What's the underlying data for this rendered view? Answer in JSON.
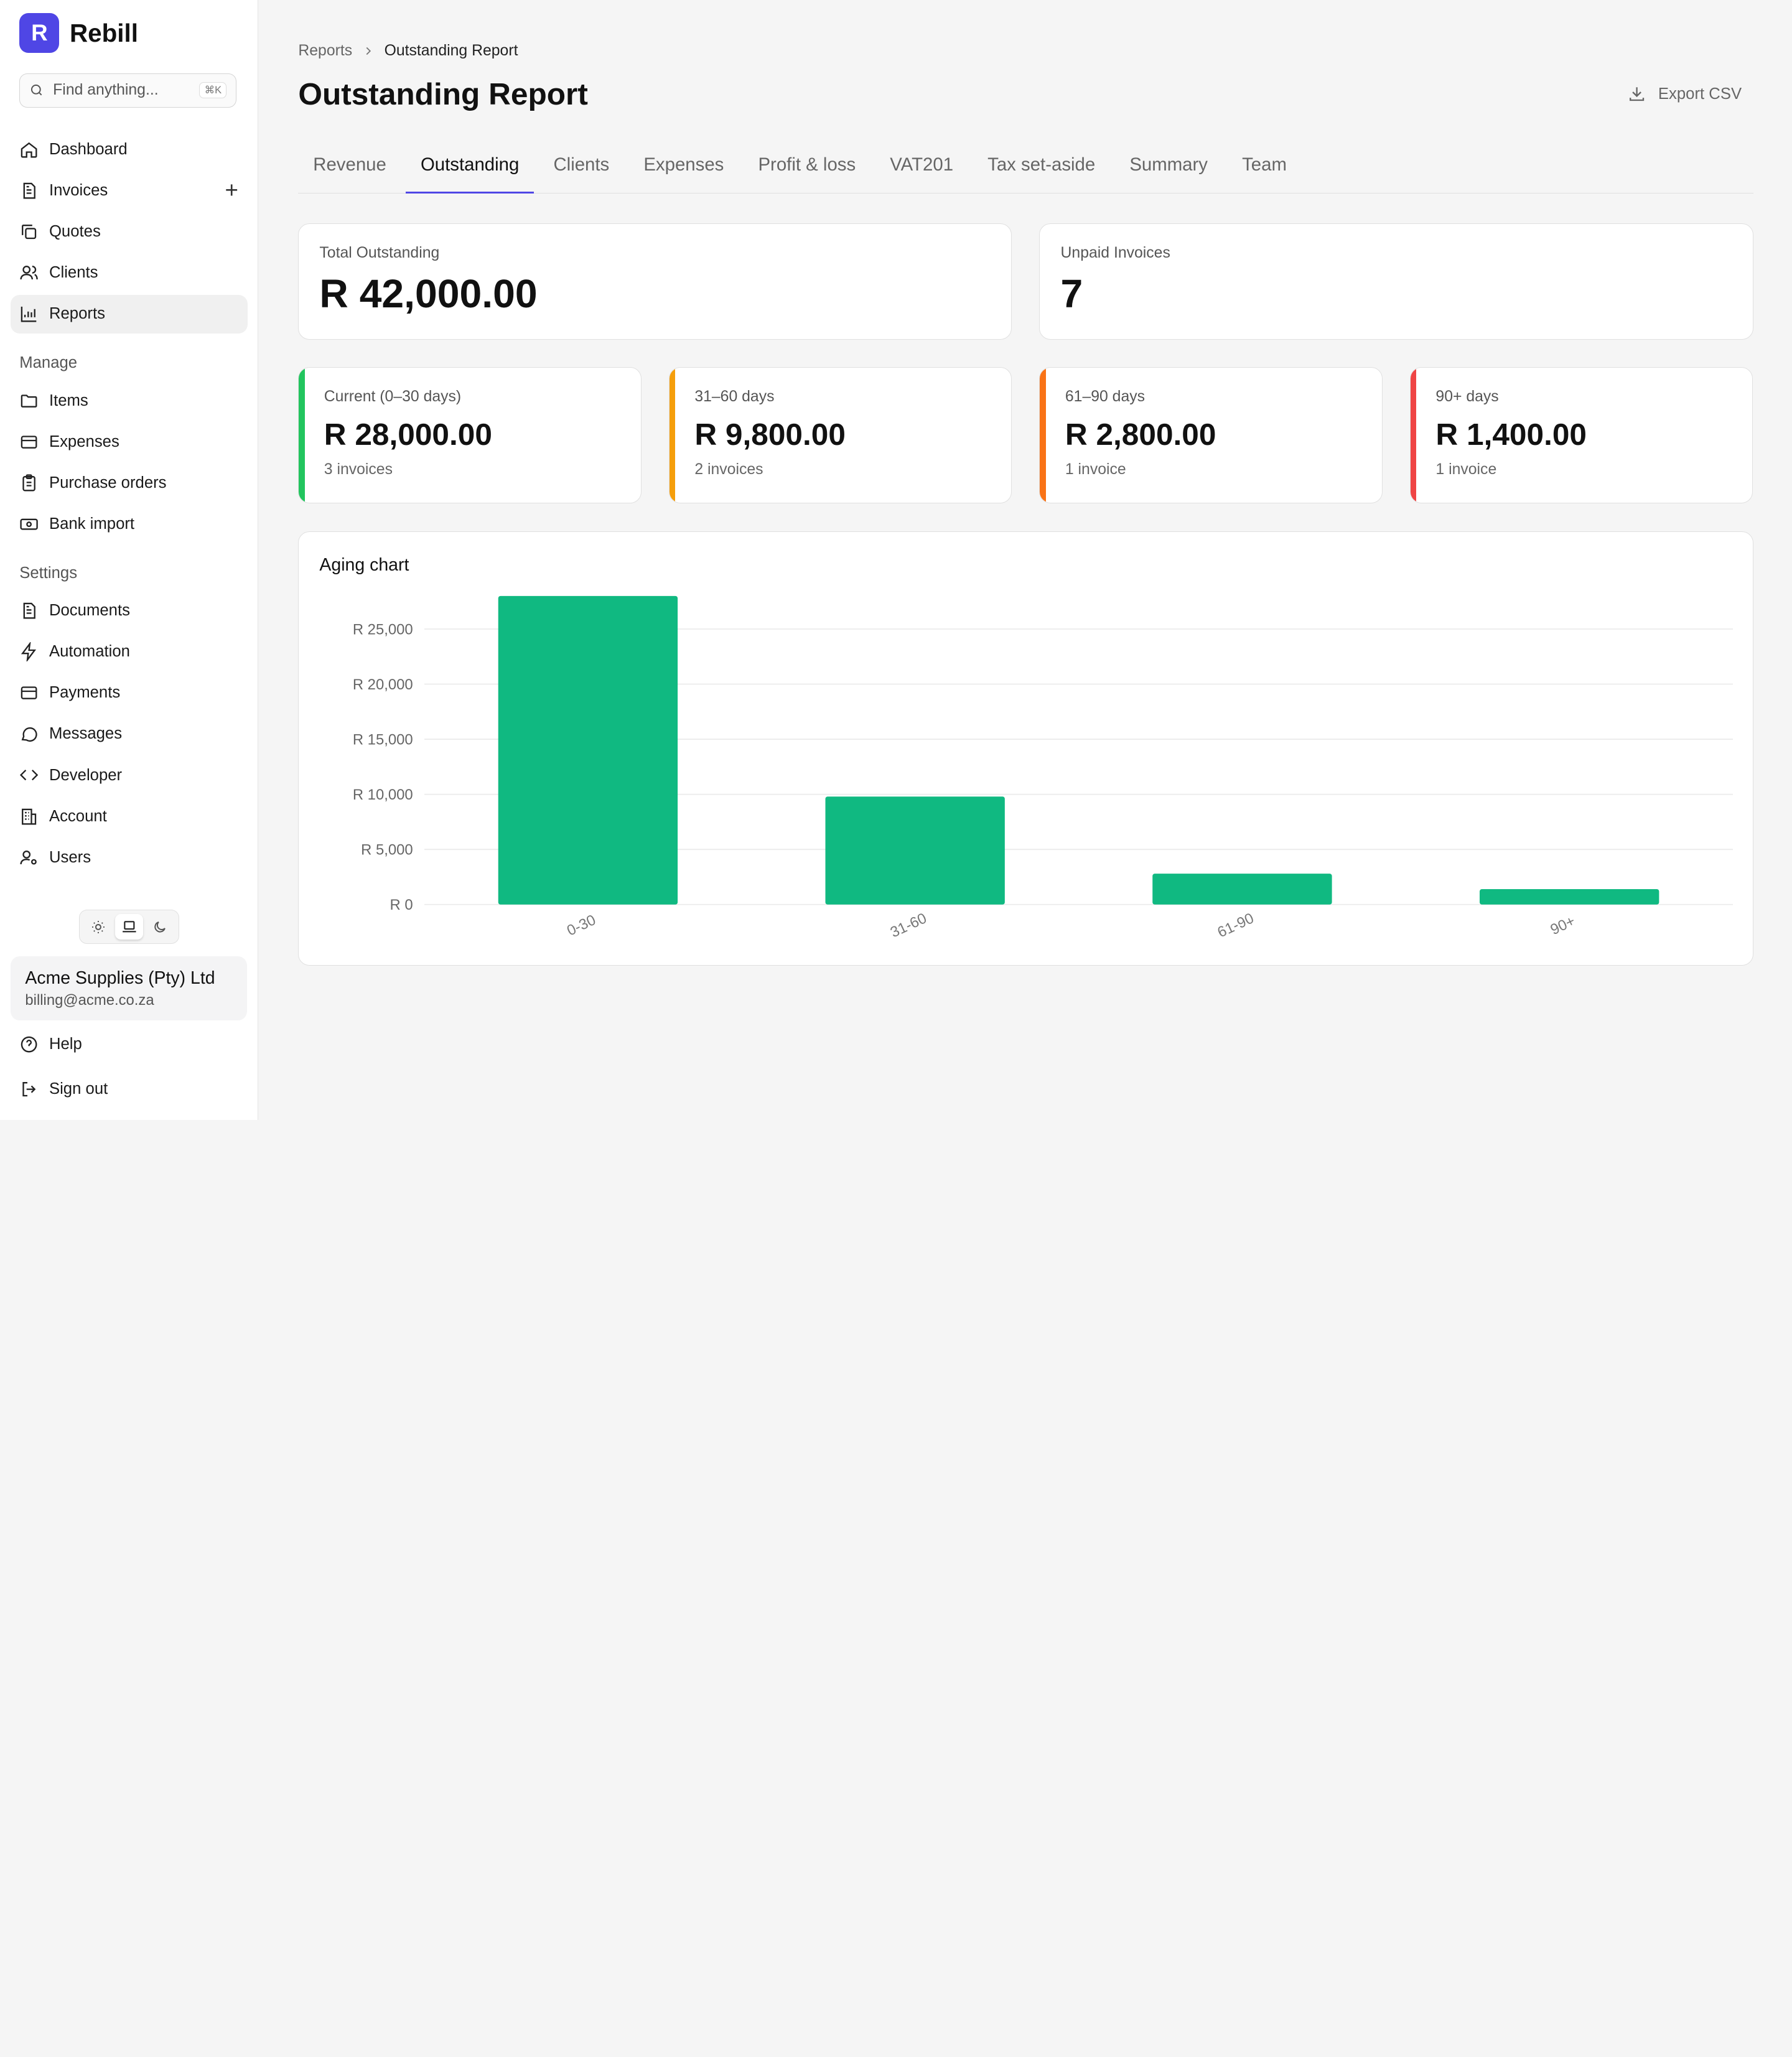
{
  "brand": {
    "logo_letter": "R",
    "name": "Rebill",
    "color": "#4f46e5"
  },
  "search": {
    "placeholder": "Find anything...",
    "shortcut": "⌘K"
  },
  "nav": {
    "main": [
      {
        "label": "Dashboard",
        "icon": "home-icon"
      },
      {
        "label": "Invoices",
        "icon": "document-icon"
      },
      {
        "label": "Quotes",
        "icon": "copy-icon"
      },
      {
        "label": "Clients",
        "icon": "users-icon"
      },
      {
        "label": "Reports",
        "icon": "chart-icon"
      }
    ],
    "manage_label": "Manage",
    "manage": [
      {
        "label": "Items",
        "icon": "folder-icon"
      },
      {
        "label": "Expenses",
        "icon": "card-icon"
      },
      {
        "label": "Purchase orders",
        "icon": "clipboard-icon"
      },
      {
        "label": "Bank import",
        "icon": "banknote-icon"
      }
    ],
    "settings_label": "Settings",
    "settings": [
      {
        "label": "Documents",
        "icon": "document-icon"
      },
      {
        "label": "Automation",
        "icon": "lightning-icon"
      },
      {
        "label": "Payments",
        "icon": "card-icon"
      },
      {
        "label": "Messages",
        "icon": "message-icon"
      },
      {
        "label": "Developer",
        "icon": "code-icon"
      },
      {
        "label": "Account",
        "icon": "building-icon"
      },
      {
        "label": "Users",
        "icon": "user-gear-icon"
      }
    ],
    "help": "Help",
    "sign_out": "Sign out"
  },
  "account": {
    "name": "Acme Supplies (Pty) Ltd",
    "email": "billing@acme.co.za"
  },
  "breadcrumb": {
    "parent": "Reports",
    "current": "Outstanding Report"
  },
  "page": {
    "title": "Outstanding Report",
    "export_label": "Export CSV"
  },
  "tabs": [
    "Revenue",
    "Outstanding",
    "Clients",
    "Expenses",
    "Profit & loss",
    "VAT201",
    "Tax set-aside",
    "Summary",
    "Team"
  ],
  "active_tab": "Outstanding",
  "summary": {
    "total_label": "Total Outstanding",
    "total_value": "R 42,000.00",
    "unpaid_label": "Unpaid Invoices",
    "unpaid_value": "7"
  },
  "aging": [
    {
      "label": "Current (0–30 days)",
      "value": "R 28,000.00",
      "count": "3 invoices",
      "color": "#22c55e"
    },
    {
      "label": "31–60 days",
      "value": "R 9,800.00",
      "count": "2 invoices",
      "color": "#f59e0b"
    },
    {
      "label": "61–90 days",
      "value": "R 2,800.00",
      "count": "1 invoice",
      "color": "#f97316"
    },
    {
      "label": "90+ days",
      "value": "R 1,400.00",
      "count": "1 invoice",
      "color": "#ef4444"
    }
  ],
  "chart_data": {
    "type": "bar",
    "title": "Aging chart",
    "categories": [
      "0-30",
      "31-60",
      "61-90",
      "90+"
    ],
    "values": [
      28000,
      9800,
      2800,
      1400
    ],
    "ylim": [
      0,
      28000
    ],
    "yticks": [
      0,
      5000,
      10000,
      15000,
      20000,
      25000
    ],
    "ytick_labels": [
      "R 0",
      "R 5,000",
      "R 10,000",
      "R 15,000",
      "R 20,000",
      "R 25,000"
    ],
    "bar_color": "#10b981",
    "grid": true
  }
}
